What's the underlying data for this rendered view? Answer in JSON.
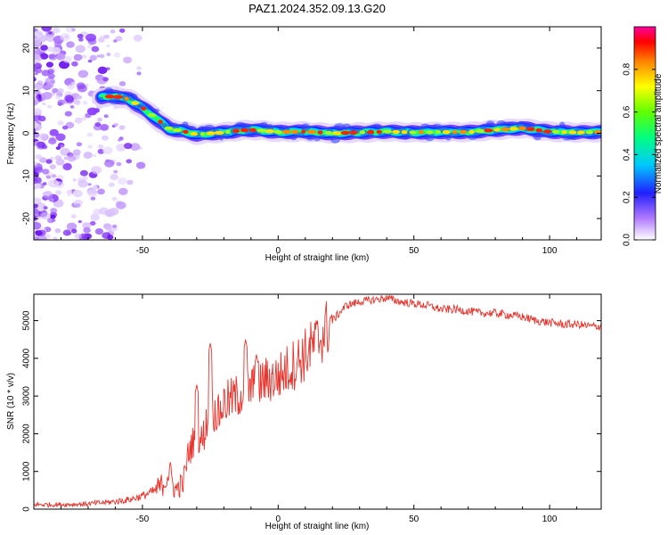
{
  "chart_data": [
    {
      "type": "heatmap",
      "title": "PAZ1.2024.352.09.13.G20",
      "xlabel": "Height of straight line (km)",
      "ylabel": "Frequency (Hz)",
      "xlim": [
        -90,
        119
      ],
      "ylim": [
        -25,
        25
      ],
      "x_ticks": [
        -50,
        0,
        50,
        100
      ],
      "y_ticks": [
        -20,
        -10,
        0,
        10,
        20
      ],
      "ridge": {
        "x": [
          -65,
          -60,
          -55,
          -50,
          -45,
          -40,
          -35,
          -30,
          -25,
          -20,
          -15,
          -10,
          -5,
          0,
          10,
          20,
          30,
          40,
          50,
          60,
          70,
          80,
          85,
          90,
          95,
          100,
          110,
          119
        ],
        "y": [
          8.5,
          8.7,
          8.0,
          6.0,
          3.5,
          1.0,
          0.5,
          -0.3,
          0.0,
          0.2,
          0.6,
          0.8,
          0.6,
          0.3,
          0.4,
          0.0,
          0.2,
          0.4,
          0.2,
          0.3,
          0.3,
          0.8,
          1.0,
          1.2,
          0.8,
          0.4,
          0.2,
          0.3
        ]
      },
      "noise_region_x": [
        -90,
        -55
      ],
      "colorbar": {
        "label": "Normalized spectral amplitude",
        "range": [
          0,
          1
        ],
        "ticks": [
          0.0,
          0.2,
          0.4,
          0.6,
          0.8
        ]
      }
    },
    {
      "type": "line",
      "xlabel": "Height of straight line (km)",
      "ylabel": "SNR (10 * v/v)",
      "xlim": [
        -90,
        119
      ],
      "ylim": [
        0,
        5700
      ],
      "x_ticks": [
        -50,
        0,
        50,
        100
      ],
      "y_ticks": [
        0,
        1000,
        2000,
        3000,
        4000,
        5000
      ],
      "color": "#e8332c",
      "series": [
        {
          "x": [
            -90,
            -80,
            -70,
            -60,
            -55,
            -50,
            -45,
            -42,
            -40,
            -38,
            -35,
            -33,
            -30,
            -28,
            -25,
            -22,
            -20,
            -15,
            -10,
            -5,
            0,
            5,
            10,
            15,
            20,
            25,
            30,
            35,
            40,
            45,
            50,
            55,
            60,
            65,
            70,
            75,
            80,
            85,
            90,
            95,
            100,
            105,
            110,
            115,
            119
          ],
          "values": [
            120,
            120,
            140,
            200,
            250,
            350,
            500,
            700,
            1000,
            500,
            700,
            1500,
            2000,
            1800,
            2700,
            2500,
            2800,
            3000,
            3200,
            3400,
            3500,
            3800,
            4100,
            4500,
            5000,
            5400,
            5500,
            5550,
            5600,
            5500,
            5450,
            5400,
            5300,
            5300,
            5250,
            5200,
            5200,
            5150,
            5100,
            5000,
            4950,
            4900,
            4900,
            4850,
            4850
          ],
          "spikes": [
            {
              "x": -25,
              "y": 4400
            },
            {
              "x": -12,
              "y": 4500
            },
            {
              "x": -8,
              "y": 4100
            },
            {
              "x": -30,
              "y": 3300
            }
          ]
        }
      ]
    }
  ]
}
